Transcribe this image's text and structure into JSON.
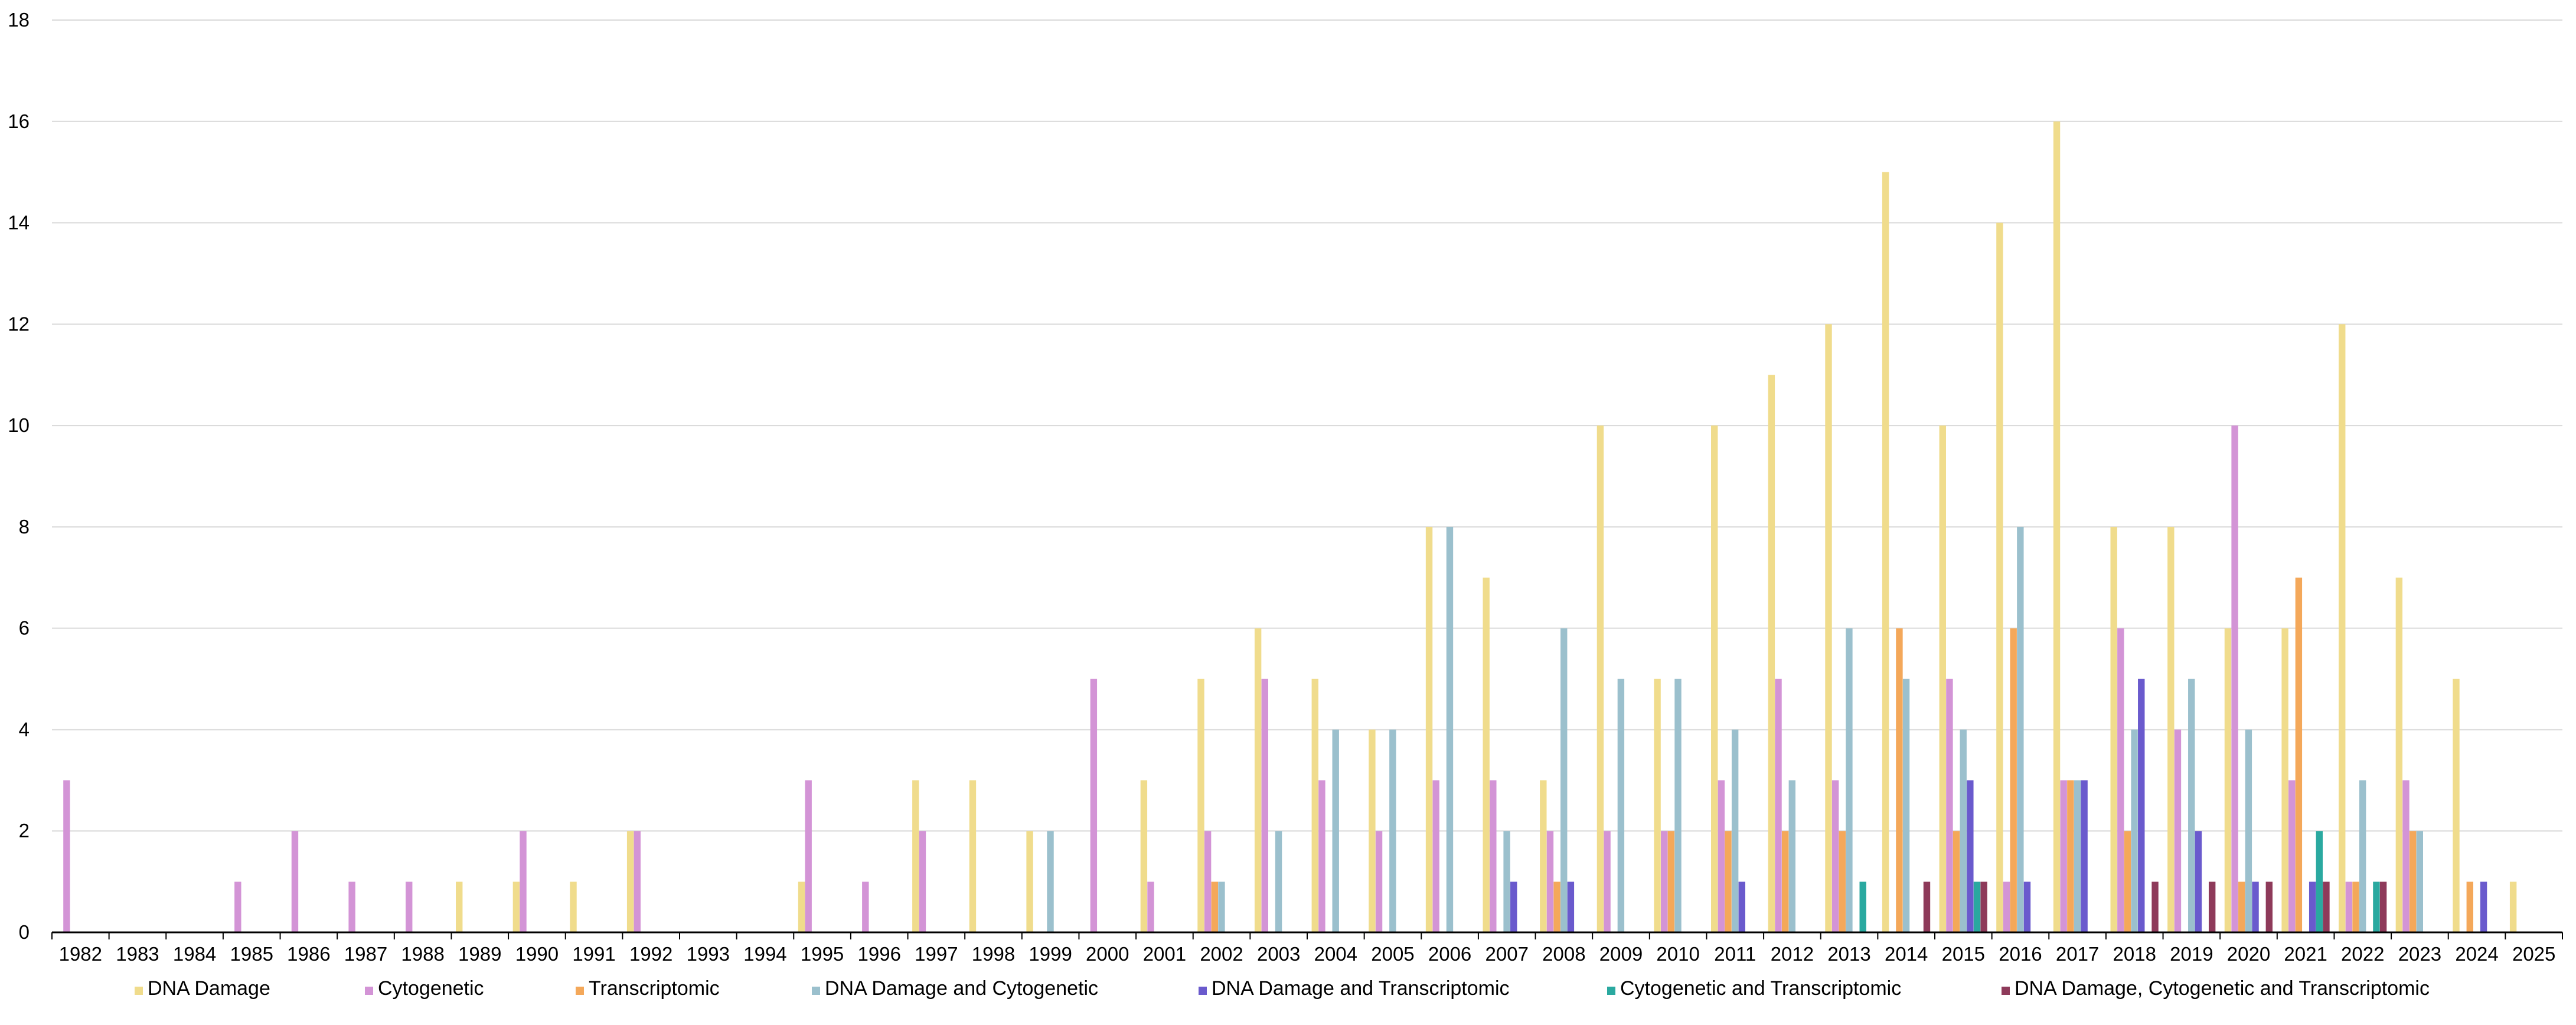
{
  "chart_data": {
    "type": "bar",
    "title": "",
    "xlabel": "",
    "ylabel": "",
    "ylim": [
      0,
      18
    ],
    "yticks": [
      "0",
      "2",
      "4",
      "6",
      "8",
      "10",
      "12",
      "14",
      "16",
      "18"
    ],
    "grid": true,
    "legend_position": "bottom",
    "categories": [
      "1982",
      "1983",
      "1984",
      "1985",
      "1986",
      "1987",
      "1988",
      "1989",
      "1990",
      "1991",
      "1992",
      "1993",
      "1994",
      "1995",
      "1996",
      "1997",
      "1998",
      "1999",
      "2000",
      "2001",
      "2002",
      "2003",
      "2004",
      "2005",
      "2006",
      "2007",
      "2008",
      "2009",
      "2010",
      "2011",
      "2012",
      "2013",
      "2014",
      "2015",
      "2016",
      "2017",
      "2018",
      "2019",
      "2020",
      "2021",
      "2022",
      "2023",
      "2024",
      "2025"
    ],
    "series": [
      {
        "name": "DNA Damage",
        "color": "#f0dc8c",
        "values": [
          0,
          0,
          0,
          0,
          0,
          0,
          0,
          1,
          1,
          1,
          2,
          0,
          0,
          1,
          0,
          3,
          3,
          2,
          0,
          3,
          5,
          6,
          5,
          4,
          8,
          7,
          3,
          10,
          5,
          10,
          11,
          12,
          15,
          10,
          14,
          16,
          8,
          8,
          6,
          6,
          12,
          7,
          5,
          1
        ]
      },
      {
        "name": "Cytogenetic",
        "color": "#d394d6",
        "values": [
          3,
          0,
          0,
          1,
          2,
          1,
          1,
          0,
          2,
          0,
          2,
          0,
          0,
          3,
          1,
          2,
          0,
          0,
          5,
          1,
          2,
          5,
          3,
          2,
          3,
          3,
          2,
          2,
          2,
          3,
          5,
          3,
          0,
          5,
          1,
          3,
          6,
          4,
          10,
          3,
          1,
          3,
          0,
          0
        ]
      },
      {
        "name": "Transcriptomic",
        "color": "#f4a85a",
        "values": [
          0,
          0,
          0,
          0,
          0,
          0,
          0,
          0,
          0,
          0,
          0,
          0,
          0,
          0,
          0,
          0,
          0,
          0,
          0,
          0,
          1,
          0,
          0,
          0,
          0,
          0,
          1,
          0,
          2,
          2,
          2,
          2,
          6,
          2,
          6,
          3,
          2,
          0,
          1,
          7,
          1,
          2,
          1,
          0
        ]
      },
      {
        "name": "DNA Damage and Cytogenetic",
        "color": "#9bc0cd",
        "values": [
          0,
          0,
          0,
          0,
          0,
          0,
          0,
          0,
          0,
          0,
          0,
          0,
          0,
          0,
          0,
          0,
          0,
          2,
          0,
          0,
          1,
          2,
          4,
          4,
          8,
          2,
          6,
          5,
          5,
          4,
          3,
          6,
          5,
          4,
          8,
          3,
          4,
          5,
          4,
          0,
          3,
          2,
          0,
          0
        ]
      },
      {
        "name": "DNA Damage and Transcriptomic",
        "color": "#6a5acd",
        "values": [
          0,
          0,
          0,
          0,
          0,
          0,
          0,
          0,
          0,
          0,
          0,
          0,
          0,
          0,
          0,
          0,
          0,
          0,
          0,
          0,
          0,
          0,
          0,
          0,
          0,
          1,
          1,
          0,
          0,
          1,
          0,
          0,
          0,
          3,
          1,
          3,
          5,
          2,
          1,
          1,
          0,
          0,
          1,
          0
        ]
      },
      {
        "name": "Cytogenetic and Transcriptomic",
        "color": "#2aa9a0",
        "values": [
          0,
          0,
          0,
          0,
          0,
          0,
          0,
          0,
          0,
          0,
          0,
          0,
          0,
          0,
          0,
          0,
          0,
          0,
          0,
          0,
          0,
          0,
          0,
          0,
          0,
          0,
          0,
          0,
          0,
          0,
          0,
          1,
          0,
          1,
          0,
          0,
          0,
          0,
          0,
          2,
          1,
          0,
          0,
          0
        ]
      },
      {
        "name": "DNA Damage, Cytogenetic and Transcriptomic",
        "color": "#8e3a5a",
        "values": [
          0,
          0,
          0,
          0,
          0,
          0,
          0,
          0,
          0,
          0,
          0,
          0,
          0,
          0,
          0,
          0,
          0,
          0,
          0,
          0,
          0,
          0,
          0,
          0,
          0,
          0,
          0,
          0,
          0,
          0,
          0,
          0,
          1,
          1,
          0,
          0,
          1,
          1,
          1,
          1,
          1,
          0,
          0,
          0
        ]
      }
    ]
  }
}
